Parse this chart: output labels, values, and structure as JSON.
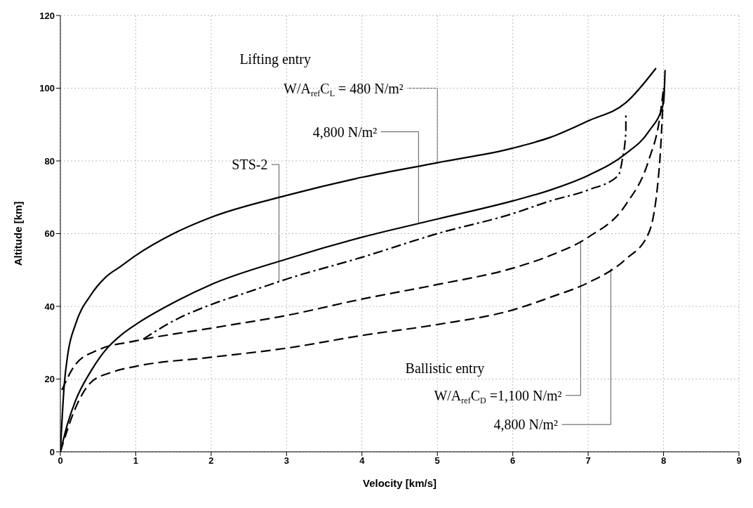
{
  "chart_data": {
    "type": "line",
    "xlabel": "Velocity [km/s]",
    "ylabel": "Altitude [km]",
    "xlim": [
      0,
      9
    ],
    "ylim": [
      0,
      120
    ],
    "xticks": [
      0,
      1,
      2,
      3,
      4,
      5,
      6,
      7,
      8,
      9
    ],
    "yticks": [
      0,
      20,
      40,
      60,
      80,
      100,
      120
    ],
    "grid": true,
    "marker": "none",
    "series": [
      {
        "color": "#000000",
        "line_style": "solid",
        "x": [
          0,
          0.05,
          0.1,
          0.2,
          0.4,
          0.6,
          0.8,
          1,
          1.5,
          2,
          3,
          4,
          5,
          6,
          6.5,
          7,
          7.5,
          7.9
        ],
        "values": [
          0,
          18,
          27,
          35,
          43,
          48,
          51,
          54,
          60,
          64.5,
          70.5,
          75.5,
          79.5,
          83.5,
          86.5,
          91,
          96,
          105.5
        ]
      },
      {
        "color": "#000000",
        "line_style": "solid",
        "x": [
          0,
          0.1,
          0.2,
          0.4,
          0.6,
          0.8,
          1,
          1.5,
          2,
          3,
          4,
          5,
          6,
          6.5,
          7,
          7.5,
          7.8,
          8,
          8.02
        ],
        "values": [
          0,
          8,
          14,
          22,
          28,
          32,
          35,
          41,
          46,
          53,
          59,
          64,
          69,
          72,
          76,
          82,
          88,
          96,
          105
        ]
      },
      {
        "color": "#000000",
        "line_style": "dashdot",
        "x": [
          1.1,
          1.5,
          2,
          2.5,
          3,
          4,
          5,
          6,
          6.5,
          7,
          7.4,
          7.45,
          7.5,
          7.5
        ],
        "values": [
          31,
          36,
          40.5,
          44,
          47.5,
          53.5,
          60,
          65.5,
          69,
          72,
          76,
          80,
          88,
          93
        ]
      },
      {
        "color": "#000000",
        "line_style": "dashed",
        "x": [
          0.02,
          0.2,
          0.5,
          1,
          2,
          3,
          4,
          5,
          6,
          6.5,
          7,
          7.5,
          7.8,
          7.95,
          8
        ],
        "values": [
          17,
          24,
          28,
          30.5,
          34,
          37.5,
          42,
          46,
          50.5,
          54,
          59,
          68,
          80,
          92,
          100
        ]
      },
      {
        "color": "#000000",
        "line_style": "dashed",
        "x": [
          0,
          0.2,
          0.4,
          0.7,
          1,
          2,
          3,
          4,
          5,
          6,
          6.5,
          7,
          7.5,
          7.8,
          7.95,
          8
        ],
        "values": [
          0,
          12,
          19,
          22,
          23.5,
          26,
          28.5,
          32,
          35,
          39,
          42.5,
          46.5,
          53,
          60,
          80,
          100
        ]
      }
    ],
    "annotations": [
      "Lifting entry",
      {
        "text": "W/A$_{ref}$C$_{L}$ = 480 N/m²",
        "x": 5,
        "y": 79.5
      },
      {
        "text": "4,800 N/m²",
        "x": 4.75,
        "y": 62.75
      },
      {
        "text": "STS-2",
        "x": 2.9,
        "y": 46.8
      },
      "Ballistic entry",
      {
        "text": "W/A$_{ref}$C$_{D}$ =1,100 N/m²",
        "x": 6.9,
        "y": 58
      },
      {
        "text": "4,800 N/m²",
        "x": 7.3,
        "y": 50.4
      }
    ]
  }
}
